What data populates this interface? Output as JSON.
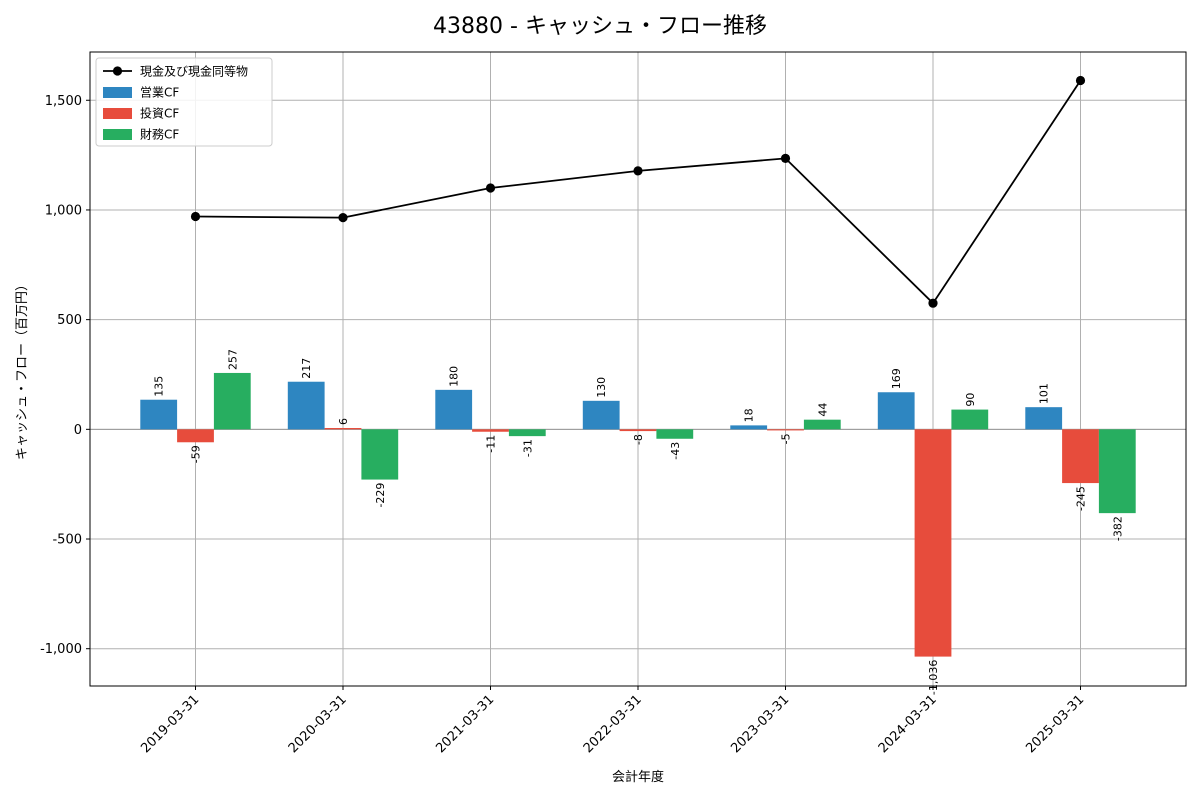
{
  "chart_data": {
    "type": "bar",
    "title": "43880 - キャッシュ・フロー推移",
    "xlabel": "会計年度",
    "ylabel": "キャッシュ・フロー（百万円）",
    "categories": [
      "2019-03-31",
      "2020-03-31",
      "2021-03-31",
      "2022-03-31",
      "2023-03-31",
      "2024-03-31",
      "2025-03-31"
    ],
    "series": [
      {
        "name": "営業CF",
        "kind": "bar",
        "color": "#2e86c1",
        "values": [
          135,
          217,
          180,
          130,
          18,
          169,
          101
        ]
      },
      {
        "name": "投資CF",
        "kind": "bar",
        "color": "#e74c3c",
        "values": [
          -59,
          6,
          -11,
          -8,
          -5,
          -1036,
          -245
        ]
      },
      {
        "name": "財務CF",
        "kind": "bar",
        "color": "#27ae60",
        "values": [
          257,
          -229,
          -31,
          -43,
          44,
          90,
          -382
        ]
      },
      {
        "name": "現金及び現金同等物",
        "kind": "line",
        "color": "#000000",
        "values": [
          970,
          965,
          1100,
          1178,
          1235,
          575,
          1590
        ]
      }
    ],
    "value_labels": {
      "営業CF": [
        "135",
        "217",
        "180",
        "130",
        "18",
        "169",
        "101"
      ],
      "投資CF": [
        "-59",
        "6",
        "-11",
        "-8",
        "-5",
        "-1,036",
        "-245"
      ],
      "財務CF": [
        "257",
        "-229",
        "-31",
        "-43",
        "44",
        "90",
        "-382"
      ]
    },
    "ylim": [
      -1170,
      1720
    ],
    "yticks": [
      -1000,
      -500,
      0,
      500,
      1000,
      1500
    ],
    "ytick_labels": [
      "-1,000",
      "-500",
      "0",
      "500",
      "1,000",
      "1,500"
    ],
    "grid": true,
    "legend_position": "top-left",
    "legend_order": [
      "現金及び現金同等物",
      "営業CF",
      "投資CF",
      "財務CF"
    ]
  }
}
